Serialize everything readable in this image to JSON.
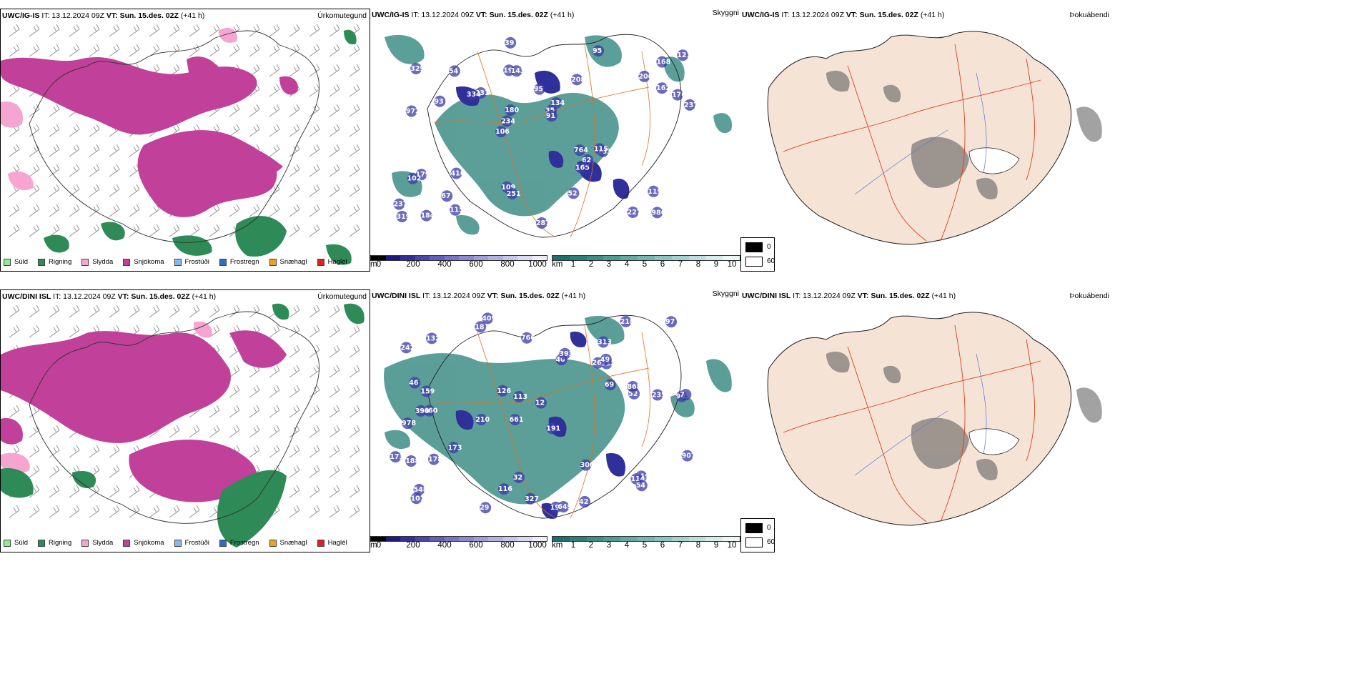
{
  "rows": [
    {
      "model": "UWC/IG-IS",
      "header_it": "IT: 13.12.2024 09Z",
      "header_vt_label": "VT:",
      "header_vt": "Sun. 15.des. 02Z",
      "header_lead": "(+41 h)",
      "precip_title": "Úrkomutegund",
      "vis_title": "Skyggni",
      "cloud_title": "Þokuábendi",
      "vis_labels": [
        "986",
        "972",
        "168",
        "106",
        "208",
        "184",
        "193",
        "95",
        "179",
        "231",
        "237",
        "67",
        "143",
        "134",
        "183",
        "329",
        "39",
        "237",
        "764",
        "162",
        "234",
        "109",
        "180",
        "54",
        "95",
        "416",
        "227",
        "119",
        "115",
        "287",
        "334",
        "93",
        "165",
        "115",
        "176",
        "35",
        "319",
        "251",
        "91",
        "102",
        "206",
        "121",
        "62",
        "52"
      ]
    },
    {
      "model": "UWC/DINI ISL",
      "header_it": "IT: 13.12.2024 09Z",
      "header_vt_label": "VT:",
      "header_vt": "Sun. 15.des. 02Z",
      "header_lead": "(+41 h)",
      "precip_title": "Úrkomutegund",
      "vis_title": "Skyggni",
      "cloud_title": "Þokuábendi",
      "vis_labels": [
        "409",
        "313",
        "903",
        "661",
        "191",
        "860",
        "242",
        "268",
        "978",
        "40",
        "12",
        "101",
        "18",
        "210",
        "199",
        "649",
        "32",
        "218",
        "69",
        "173",
        "159",
        "390",
        "7",
        "235",
        "173",
        "46",
        "113",
        "52",
        "119",
        "188",
        "114",
        "393",
        "178",
        "126",
        "300",
        "907",
        "868",
        "116",
        "97",
        "766",
        "548",
        "29",
        "42",
        "132",
        "327",
        "932",
        "54",
        "49"
      ]
    }
  ],
  "precip_legend": [
    {
      "label": "Súld",
      "color": "#90ee90"
    },
    {
      "label": "Rigning",
      "color": "#2e8b57"
    },
    {
      "label": "Slydda",
      "color": "#f5a5d0"
    },
    {
      "label": "Snjókoma",
      "color": "#c0409a"
    },
    {
      "label": "Frostúði",
      "color": "#87b7f0"
    },
    {
      "label": "Frostregn",
      "color": "#2f6fc0"
    },
    {
      "label": "Snæhagl",
      "color": "#f0a020"
    },
    {
      "label": "Haglél",
      "color": "#e02020"
    }
  ],
  "height_bar": {
    "unit": "m",
    "ticks": [
      "0",
      "200",
      "400",
      "600",
      "800",
      "1000"
    ],
    "colors": [
      "#000000",
      "#1a1a80",
      "#303098",
      "#4848aa",
      "#6060b8",
      "#7676c4",
      "#8a8ace",
      "#9e9ed8",
      "#b2b2e0",
      "#c6c6ea",
      "#dadaf2",
      "#eeeefa"
    ]
  },
  "visibility_bar": {
    "unit": "km",
    "ticks": [
      "1",
      "2",
      "3",
      "4",
      "5",
      "6",
      "7",
      "8",
      "9",
      "10"
    ],
    "colors": [
      "#1f6f6a",
      "#2e7f78",
      "#3e8e86",
      "#4f9c95",
      "#62aaa3",
      "#76b8b1",
      "#8cc5bf",
      "#a3d2cd",
      "#bbdfdb",
      "#d3ece9",
      "#ebf7f5"
    ]
  },
  "cloud_legend": {
    "values": [
      "0",
      "60"
    ],
    "colors": [
      "#000000",
      "#ffffff"
    ]
  }
}
